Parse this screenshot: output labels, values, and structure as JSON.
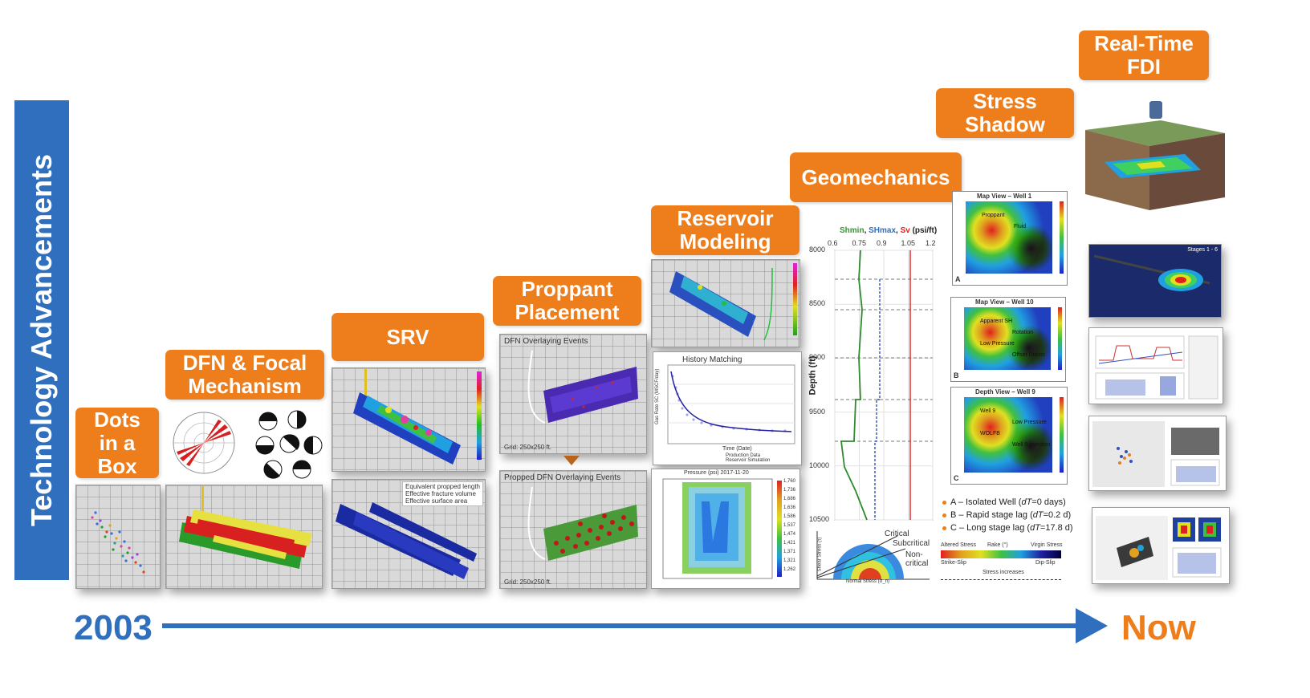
{
  "side_label": "Technology Advancements",
  "timeline": {
    "start": "2003",
    "end": "Now"
  },
  "colors": {
    "blue": "#2f6fbd",
    "orange": "#ee7d1c"
  },
  "stages": [
    {
      "label": "Dots\nin a\nBox"
    },
    {
      "label": "DFN & Focal\nMechanism"
    },
    {
      "label": "SRV"
    },
    {
      "label": "Proppant\nPlacement"
    },
    {
      "label": "Reservoir\nModeling"
    },
    {
      "label": "Geomechanics"
    },
    {
      "label": "Stress\nShadow"
    },
    {
      "label": "Real-Time\nFDI"
    }
  ],
  "srv_panel": {
    "legend": [
      "Equivalent propped length",
      "Effective fracture volume",
      "Effective surface area"
    ]
  },
  "proppant_panels": {
    "top_title": "DFN Overlaying Events",
    "bottom_title": "Propped DFN Overlaying Events",
    "grid_note": "Grid: 250x250 ft."
  },
  "reservoir_panels": {
    "history_title": "History Matching",
    "y_label": "Gas Rate SC (MSCF/day)",
    "x_label": "Time (Date)",
    "legend": [
      "Production Data",
      "Reservoir Simulation"
    ],
    "pressure_title": "Pressure (psi) 2017-11-20",
    "pressure_scale": [
      "1,760",
      "1,736",
      "1,686",
      "1,636",
      "1,586",
      "1,537",
      "1,474",
      "1,421",
      "1,371",
      "1,321",
      "1,262"
    ]
  },
  "geomechanics": {
    "title_parts": [
      {
        "text": "Shmin",
        "color": "#2e9a2e"
      },
      {
        "text": ", ",
        "color": "#222222"
      },
      {
        "text": "SHmax",
        "color": "#2f6fbd"
      },
      {
        "text": ", ",
        "color": "#222222"
      },
      {
        "text": "Sv",
        "color": "#e02020"
      },
      {
        "text": " (psi/ft)",
        "color": "#222222"
      }
    ],
    "x_ticks": [
      "0.6",
      "0.75",
      "0.9",
      "1.05",
      "1.2"
    ],
    "y_label": "Depth (ft)",
    "y_ticks": [
      "8000",
      "8500",
      "9000",
      "9500",
      "10000",
      "10500"
    ],
    "mohr_labels": [
      "Critical",
      "Subcritical",
      "Non-\ncritical"
    ],
    "mohr_x_label": "Normal Stress (σ_n)",
    "mohr_y_label": "Shear Stress (τ)"
  },
  "stress_shadow": {
    "maps": [
      {
        "title": "Map View – Well 1",
        "letter": "A",
        "notes": [
          "Proppant",
          "Fluid"
        ]
      },
      {
        "title": "Map View – Well 10",
        "letter": "B",
        "notes": [
          "Apparent SH",
          "Rotation",
          "Low Pressure",
          "Offset Drains"
        ]
      },
      {
        "title": "Depth View – Well 9",
        "letter": "C",
        "notes": [
          "Well 9",
          "Low Pressure",
          "WOLFB",
          "Well 9 Injection"
        ]
      }
    ],
    "legend": [
      {
        "prefix": "A – Isolated Well (",
        "var": "dT",
        "suffix": "=0 days)"
      },
      {
        "prefix": "B – Rapid stage lag (",
        "var": "dT",
        "suffix": "=0.2 d)"
      },
      {
        "prefix": "C – Long stage lag (",
        "var": "dT",
        "suffix": "=17.8 d)"
      }
    ],
    "rake_bar": {
      "left": "Altered Stress",
      "mid": "Rake (°)",
      "right": "Virgin Stress",
      "bottom_left": "Strike-Slip",
      "bottom_right": "Dip-Slip",
      "note": "Stress increases"
    }
  },
  "realtime_panels": {
    "strip_labels": [
      "Stages 1 - 6"
    ]
  }
}
